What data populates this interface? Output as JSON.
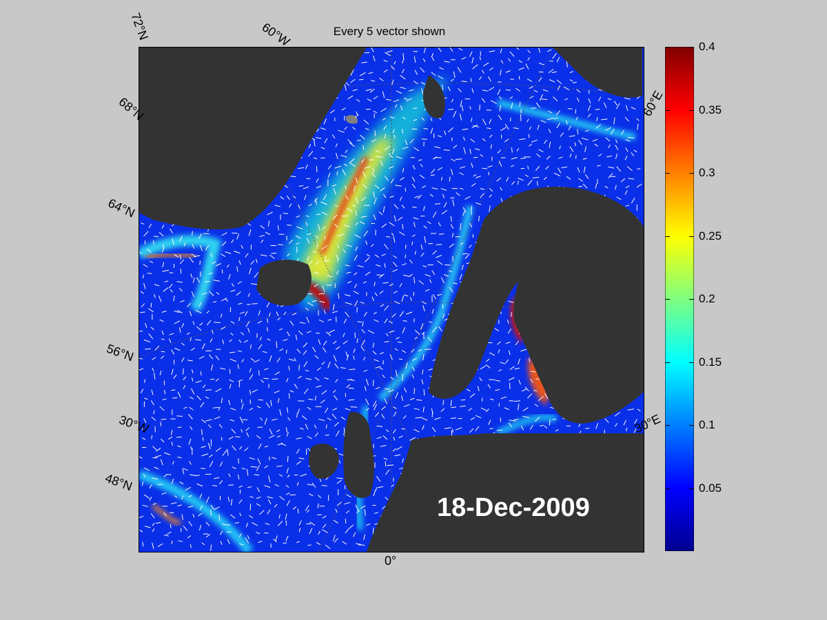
{
  "figure": {
    "title": "Every 5 vector shown",
    "date_label": "18-Dec-2009"
  },
  "map": {
    "projection": "polar stereographic",
    "lat_labels": [
      "72°N",
      "68°N",
      "64°N",
      "56°N",
      "48°N"
    ],
    "lon_labels": [
      "60°W",
      "30°W",
      "0°",
      "30°E",
      "60°E"
    ],
    "land_color": "#333333",
    "ice_color": "#808080",
    "vector_color": "#ffffff"
  },
  "colorbar": {
    "colormap": "jet",
    "min": 0,
    "max": 0.4,
    "ticks": [
      "0.05",
      "0.1",
      "0.15",
      "0.2",
      "0.25",
      "0.3",
      "0.35",
      "0.4"
    ],
    "tick_values": [
      0.05,
      0.1,
      0.15,
      0.2,
      0.25,
      0.3,
      0.35,
      0.4
    ]
  }
}
